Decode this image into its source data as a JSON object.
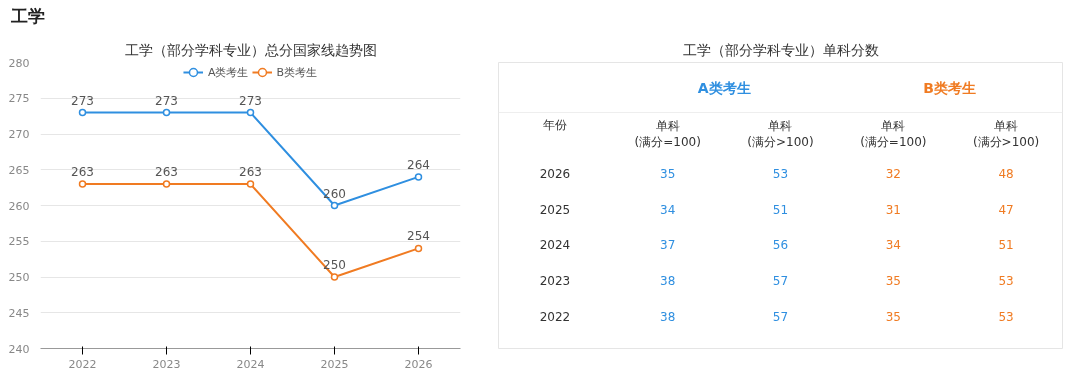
{
  "chart_data": [
    {
      "type": "line",
      "title": "工学（部分学科专业）总分国家线趋势图",
      "annotations": [
        "工学"
      ],
      "categories": [
        "2022",
        "2023",
        "2024",
        "2025",
        "2026"
      ],
      "series": [
        {
          "name": "A类考生",
          "color": "#2f8fe0",
          "values": [
            273,
            273,
            273,
            260,
            264
          ]
        },
        {
          "name": "B类考生",
          "color": "#f07b22",
          "values": [
            263,
            263,
            263,
            250,
            254
          ]
        }
      ],
      "ylim": [
        240,
        280
      ],
      "yticks": [
        240,
        245,
        250,
        255,
        260,
        265,
        270,
        275,
        280
      ],
      "grid": "y",
      "legend": "top",
      "data_labels": true,
      "marker": "circle",
      "line_style": "solid"
    },
    {
      "type": "heatmap",
      "title": "工学（部分学科专业）单科分数",
      "ylabel": "年份",
      "annotations": [
        "A类考生",
        "B类考生"
      ],
      "data_labels": true,
      "categories": [
        "单科\n(满分=100)",
        "单科\n(满分>100)",
        "单科\n(满分=100)",
        "单科\n(满分>100)"
      ],
      "colors": [
        "#2f8fe0",
        "#2f8fe0",
        "#f07b22",
        "#f07b22"
      ],
      "y_categories": [
        "2026",
        "2025",
        "2024",
        "2023",
        "2022"
      ],
      "cells": [
        [
          35,
          53,
          32,
          48
        ],
        [
          34,
          51,
          31,
          47
        ],
        [
          37,
          56,
          34,
          51
        ],
        [
          38,
          57,
          35,
          53
        ],
        [
          38,
          57,
          35,
          53
        ]
      ]
    }
  ]
}
